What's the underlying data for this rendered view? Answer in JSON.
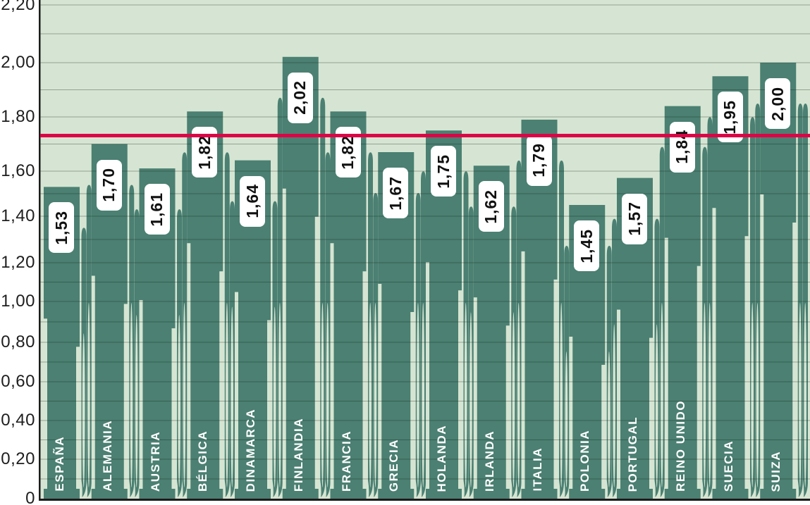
{
  "chart_data": {
    "type": "bar",
    "title": "",
    "xlabel": "",
    "ylabel": "",
    "categories": [
      "ESPAÑA",
      "ALEMANIA",
      "AUSTRIA",
      "BÉLGICA",
      "DINAMARCA",
      "FINLANDIA",
      "FRANCIA",
      "GRECIA",
      "HOLANDA",
      "IRLANDA",
      "ITALIA",
      "POLONIA",
      "PORTUGAL",
      "REINO UNIDO",
      "SUECIA",
      "SUIZA"
    ],
    "values": [
      1.53,
      1.7,
      1.61,
      1.82,
      1.64,
      2.02,
      1.82,
      1.67,
      1.75,
      1.62,
      1.79,
      1.45,
      1.57,
      1.84,
      1.95,
      2.0
    ],
    "value_labels": [
      "1,53",
      "1,70",
      "1,61",
      "1,82",
      "1,64",
      "2,02",
      "1,82",
      "1,67",
      "1,75",
      "1,62",
      "1,79",
      "1,45",
      "1,57",
      "1,84",
      "1,95",
      "2,00"
    ],
    "decimal_separator": ",",
    "ylim": [
      0,
      2.2
    ],
    "grid": true,
    "grid_interval": 0.1,
    "legend": false,
    "yticks": [
      {
        "value": 0,
        "label": "0"
      },
      {
        "value": 0.2,
        "label": "0,20"
      },
      {
        "value": 0.4,
        "label": "0,40"
      },
      {
        "value": 0.6,
        "label": "0,60"
      },
      {
        "value": 0.8,
        "label": "0,80"
      },
      {
        "value": 1.0,
        "label": "1,00"
      },
      {
        "value": 1.2,
        "label": "1,20"
      },
      {
        "value": 1.4,
        "label": "1,40"
      },
      {
        "value": 1.6,
        "label": "1,60"
      },
      {
        "value": 1.8,
        "label": "1,80"
      },
      {
        "value": 2.0,
        "label": "2,00"
      },
      {
        "value": 2.2,
        "label": "2,20"
      }
    ],
    "reference_line": {
      "value": 1.73
    },
    "colors": {
      "bar": "#4b8072",
      "plot_background": "#d6e5d3",
      "page_background": "#ffffff",
      "gridline": "rgba(20,35,25,0.35)",
      "axis_line": "#1c1c1c",
      "reference_line": "#dd0446",
      "value_label_bg": "#ffffff",
      "value_label_text": "#101010",
      "category_label_text": "#ffffff",
      "axis_text": "#1e1e1e"
    }
  }
}
